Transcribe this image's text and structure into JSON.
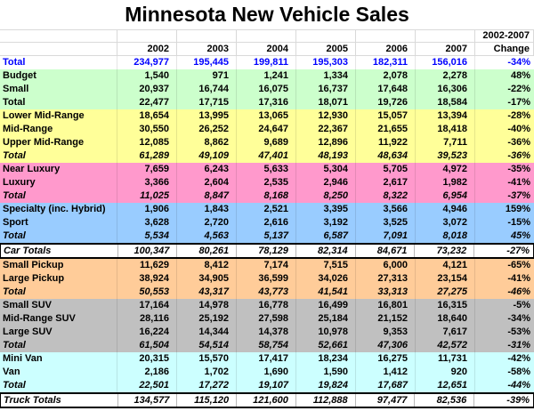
{
  "title": "Minnesota New Vehicle Sales",
  "header": {
    "years": [
      "2002",
      "2003",
      "2004",
      "2005",
      "2006",
      "2007"
    ],
    "change_label_line1": "2002-2007",
    "change_label_line2": "Change"
  },
  "colors": {
    "plain": "#FFFFFF",
    "green": "#CCFFCC",
    "yellow": "#FFFF99",
    "pink": "#FF99CC",
    "blue": "#99CCFF",
    "orange": "#FFCC99",
    "gray": "#C0C0C0",
    "cyan": "#CCFFFF",
    "grand_total_text": "#0000FF",
    "gridline": "#D9D9D9",
    "border_black": "#000000"
  },
  "chart_data": {
    "type": "table",
    "title": "Minnesota New Vehicle Sales",
    "columns": [
      "",
      "2002",
      "2003",
      "2004",
      "2005",
      "2006",
      "2007",
      "2002-2007 Change"
    ],
    "rows": [
      {
        "label": "Total",
        "values": [
          "234,977",
          "195,445",
          "199,811",
          "195,303",
          "182,311",
          "156,016"
        ],
        "change": "-34%",
        "section": "plain",
        "italic": false,
        "text_color": "#0000FF"
      },
      {
        "label": "Budget",
        "values": [
          "1,540",
          "971",
          "1,241",
          "1,334",
          "2,078",
          "2,278"
        ],
        "change": "48%",
        "section": "green",
        "italic": false
      },
      {
        "label": "Small",
        "values": [
          "20,937",
          "16,744",
          "16,075",
          "16,737",
          "17,648",
          "16,306"
        ],
        "change": "-22%",
        "section": "green",
        "italic": false
      },
      {
        "label": "Total",
        "values": [
          "22,477",
          "17,715",
          "17,316",
          "18,071",
          "19,726",
          "18,584"
        ],
        "change": "-17%",
        "section": "green",
        "italic": false
      },
      {
        "label": "Lower Mid-Range",
        "values": [
          "18,654",
          "13,995",
          "13,065",
          "12,930",
          "15,057",
          "13,394"
        ],
        "change": "-28%",
        "section": "yellow",
        "italic": false
      },
      {
        "label": "Mid-Range",
        "values": [
          "30,550",
          "26,252",
          "24,647",
          "22,367",
          "21,655",
          "18,418"
        ],
        "change": "-40%",
        "section": "yellow",
        "italic": false
      },
      {
        "label": "Upper Mid-Range",
        "values": [
          "12,085",
          "8,862",
          "9,689",
          "12,896",
          "11,922",
          "7,711"
        ],
        "change": "-36%",
        "section": "yellow",
        "italic": false
      },
      {
        "label": "Total",
        "values": [
          "61,289",
          "49,109",
          "47,401",
          "48,193",
          "48,634",
          "39,523"
        ],
        "change": "-36%",
        "section": "yellow",
        "italic": true
      },
      {
        "label": "Near Luxury",
        "values": [
          "7,659",
          "6,243",
          "5,633",
          "5,304",
          "5,705",
          "4,972"
        ],
        "change": "-35%",
        "section": "pink",
        "italic": false
      },
      {
        "label": "Luxury",
        "values": [
          "3,366",
          "2,604",
          "2,535",
          "2,946",
          "2,617",
          "1,982"
        ],
        "change": "-41%",
        "section": "pink",
        "italic": false
      },
      {
        "label": "Total",
        "values": [
          "11,025",
          "8,847",
          "8,168",
          "8,250",
          "8,322",
          "6,954"
        ],
        "change": "-37%",
        "section": "pink",
        "italic": true
      },
      {
        "label": "Specialty (inc. Hybrid)",
        "values": [
          "1,906",
          "1,843",
          "2,521",
          "3,395",
          "3,566",
          "4,946"
        ],
        "change": "159%",
        "section": "blue",
        "italic": false
      },
      {
        "label": "Sport",
        "values": [
          "3,628",
          "2,720",
          "2,616",
          "3,192",
          "3,525",
          "3,072"
        ],
        "change": "-15%",
        "section": "blue",
        "italic": false
      },
      {
        "label": "Total",
        "values": [
          "5,534",
          "4,563",
          "5,137",
          "6,587",
          "7,091",
          "8,018"
        ],
        "change": "45%",
        "section": "blue",
        "italic": true
      },
      {
        "label": "Car Totals",
        "values": [
          "100,347",
          "80,261",
          "78,129",
          "82,314",
          "84,671",
          "73,232"
        ],
        "change": "-27%",
        "section": "plain",
        "italic": true,
        "boxed": true
      },
      {
        "label": "Small Pickup",
        "values": [
          "11,629",
          "8,412",
          "7,174",
          "7,515",
          "6,000",
          "4,121"
        ],
        "change": "-65%",
        "section": "orange",
        "italic": false
      },
      {
        "label": "Large Pickup",
        "values": [
          "38,924",
          "34,905",
          "36,599",
          "34,026",
          "27,313",
          "23,154"
        ],
        "change": "-41%",
        "section": "orange",
        "italic": false
      },
      {
        "label": "Total",
        "values": [
          "50,553",
          "43,317",
          "43,773",
          "41,541",
          "33,313",
          "27,275"
        ],
        "change": "-46%",
        "section": "orange",
        "italic": true
      },
      {
        "label": "Small SUV",
        "values": [
          "17,164",
          "14,978",
          "16,778",
          "16,499",
          "16,801",
          "16,315"
        ],
        "change": "-5%",
        "section": "gray",
        "italic": false
      },
      {
        "label": "Mid-Range SUV",
        "values": [
          "28,116",
          "25,192",
          "27,598",
          "25,184",
          "21,152",
          "18,640"
        ],
        "change": "-34%",
        "section": "gray",
        "italic": false
      },
      {
        "label": "Large SUV",
        "values": [
          "16,224",
          "14,344",
          "14,378",
          "10,978",
          "9,353",
          "7,617"
        ],
        "change": "-53%",
        "section": "gray",
        "italic": false
      },
      {
        "label": "Total",
        "values": [
          "61,504",
          "54,514",
          "58,754",
          "52,661",
          "47,306",
          "42,572"
        ],
        "change": "-31%",
        "section": "gray",
        "italic": true
      },
      {
        "label": "Mini Van",
        "values": [
          "20,315",
          "15,570",
          "17,417",
          "18,234",
          "16,275",
          "11,731"
        ],
        "change": "-42%",
        "section": "cyan",
        "italic": false
      },
      {
        "label": "Van",
        "values": [
          "2,186",
          "1,702",
          "1,690",
          "1,590",
          "1,412",
          "920"
        ],
        "change": "-58%",
        "section": "cyan",
        "italic": false
      },
      {
        "label": "Total",
        "values": [
          "22,501",
          "17,272",
          "19,107",
          "19,824",
          "17,687",
          "12,651"
        ],
        "change": "-44%",
        "section": "cyan",
        "italic": true
      },
      {
        "label": "Truck Totals",
        "values": [
          "134,577",
          "115,120",
          "121,600",
          "112,888",
          "97,477",
          "82,536"
        ],
        "change": "-39%",
        "section": "plain",
        "italic": true,
        "boxed": true
      }
    ]
  }
}
